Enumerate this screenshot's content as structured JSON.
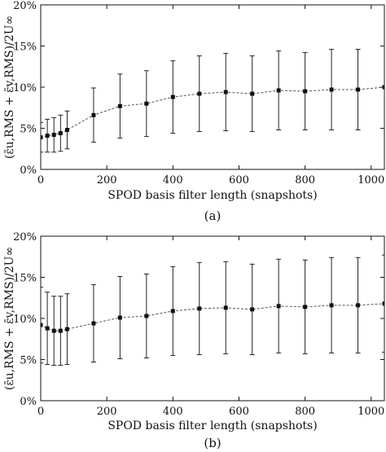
{
  "chart_data": [
    {
      "type": "line",
      "panel_label": "(a)",
      "xlabel": "SPOD basis filter length (snapshots)",
      "ylabel": "(ε̄u,RMS + ε̄v,RMS)/2U∞",
      "xlim": [
        0,
        1040
      ],
      "ylim": [
        0,
        20
      ],
      "xticks": [
        0,
        200,
        400,
        600,
        800,
        1000
      ],
      "xtick_labels": [
        "0",
        "200",
        "400",
        "600",
        "800",
        "1000"
      ],
      "yticks": [
        0,
        5,
        10,
        15,
        20
      ],
      "ytick_labels": [
        "0%",
        "5%",
        "10%",
        "15%",
        "20%"
      ],
      "grid": false,
      "points": [
        {
          "x": 0,
          "y": 3.9,
          "err": 1.8
        },
        {
          "x": 20,
          "y": 4.1,
          "err": 2.0
        },
        {
          "x": 40,
          "y": 4.2,
          "err": 2.1
        },
        {
          "x": 60,
          "y": 4.4,
          "err": 2.2
        },
        {
          "x": 80,
          "y": 4.8,
          "err": 2.3
        },
        {
          "x": 160,
          "y": 6.6,
          "err": 3.3
        },
        {
          "x": 240,
          "y": 7.7,
          "err": 3.9
        },
        {
          "x": 320,
          "y": 8.0,
          "err": 4.0
        },
        {
          "x": 400,
          "y": 8.8,
          "err": 4.4
        },
        {
          "x": 480,
          "y": 9.2,
          "err": 4.6
        },
        {
          "x": 560,
          "y": 9.4,
          "err": 4.7
        },
        {
          "x": 640,
          "y": 9.2,
          "err": 4.6
        },
        {
          "x": 720,
          "y": 9.6,
          "err": 4.8
        },
        {
          "x": 800,
          "y": 9.5,
          "err": 4.7
        },
        {
          "x": 880,
          "y": 9.7,
          "err": 4.9
        },
        {
          "x": 960,
          "y": 9.7,
          "err": 4.9
        },
        {
          "x": 1040,
          "y": 10.0,
          "err": 5.0
        }
      ]
    },
    {
      "type": "line",
      "panel_label": "(b)",
      "xlabel": "SPOD basis filter length (snapshots)",
      "ylabel": "(ε̄u,RMS + ε̄v,RMS)/2U∞",
      "xlim": [
        0,
        1040
      ],
      "ylim": [
        0,
        20
      ],
      "xticks": [
        0,
        200,
        400,
        600,
        800,
        1000
      ],
      "xtick_labels": [
        "0",
        "200",
        "400",
        "600",
        "800",
        "1000"
      ],
      "yticks": [
        0,
        5,
        10,
        15,
        20
      ],
      "ytick_labels": [
        "0%",
        "5%",
        "10%",
        "15%",
        "20%"
      ],
      "grid": false,
      "points": [
        {
          "x": 0,
          "y": 9.2,
          "err": 4.6
        },
        {
          "x": 20,
          "y": 8.8,
          "err": 4.4
        },
        {
          "x": 40,
          "y": 8.5,
          "err": 4.2
        },
        {
          "x": 60,
          "y": 8.5,
          "err": 4.2
        },
        {
          "x": 80,
          "y": 8.7,
          "err": 4.3
        },
        {
          "x": 160,
          "y": 9.4,
          "err": 4.7
        },
        {
          "x": 240,
          "y": 10.1,
          "err": 5.0
        },
        {
          "x": 320,
          "y": 10.3,
          "err": 5.1
        },
        {
          "x": 400,
          "y": 10.9,
          "err": 5.4
        },
        {
          "x": 480,
          "y": 11.2,
          "err": 5.6
        },
        {
          "x": 560,
          "y": 11.3,
          "err": 5.6
        },
        {
          "x": 640,
          "y": 11.1,
          "err": 5.5
        },
        {
          "x": 720,
          "y": 11.5,
          "err": 5.7
        },
        {
          "x": 800,
          "y": 11.4,
          "err": 5.7
        },
        {
          "x": 880,
          "y": 11.6,
          "err": 5.8
        },
        {
          "x": 960,
          "y": 11.6,
          "err": 5.8
        },
        {
          "x": 1040,
          "y": 11.8,
          "err": 5.9
        }
      ]
    }
  ],
  "style": {
    "marker_color": "#111111",
    "line_color": "#555555",
    "errorbar_color": "#222222",
    "axis_color": "#111111"
  }
}
